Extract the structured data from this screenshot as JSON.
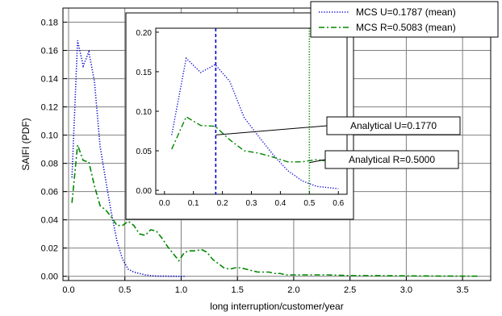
{
  "chart_data": [
    {
      "type": "line",
      "xlabel": "long interruption/customer/year",
      "ylabel": "SAIFI (PDF)",
      "xlim": [
        -0.05,
        3.75
      ],
      "ylim": [
        -0.003,
        0.19
      ],
      "xticks": [
        0.0,
        0.5,
        1.0,
        1.5,
        2.0,
        2.5,
        3.0,
        3.5
      ],
      "xtick_labels": [
        "0.0",
        "0.5",
        "1.0",
        "1.5",
        "2.0",
        "2.5",
        "3.0",
        "3.5"
      ],
      "yticks": [
        0.0,
        0.02,
        0.04,
        0.06,
        0.08,
        0.1,
        0.12,
        0.14,
        0.16,
        0.18
      ],
      "ytick_labels": [
        "0.00",
        "0.02",
        "0.04",
        "0.06",
        "0.08",
        "0.10",
        "0.12",
        "0.14",
        "0.16",
        "0.18"
      ],
      "grid": true,
      "legend_position": "top-right",
      "series": [
        {
          "name": "MCS U=0.1787 (mean)",
          "color": "#0000cc",
          "style": "dotted",
          "x": [
            0.03,
            0.08,
            0.13,
            0.18,
            0.23,
            0.28,
            0.33,
            0.38,
            0.43,
            0.48,
            0.53,
            0.58,
            0.63,
            0.68,
            0.73,
            0.78,
            0.85,
            0.95,
            1.03
          ],
          "y": [
            0.07,
            0.167,
            0.149,
            0.159,
            0.138,
            0.092,
            0.068,
            0.045,
            0.025,
            0.012,
            0.005,
            0.003,
            0.002,
            0.001,
            0.0005,
            0.0002,
            0.0001,
            0.0,
            0.0
          ]
        },
        {
          "name": "MCS R=0.5083 (mean)",
          "color": "#008800",
          "style": "dashdot",
          "x": [
            0.03,
            0.08,
            0.13,
            0.18,
            0.23,
            0.28,
            0.33,
            0.38,
            0.43,
            0.48,
            0.53,
            0.58,
            0.63,
            0.68,
            0.73,
            0.78,
            0.83,
            0.88,
            0.93,
            0.98,
            1.03,
            1.08,
            1.13,
            1.18,
            1.23,
            1.28,
            1.33,
            1.38,
            1.43,
            1.48,
            1.53,
            1.58,
            1.63,
            1.68,
            1.73,
            1.78,
            1.83,
            1.88,
            1.93,
            1.98,
            2.1,
            2.3,
            2.5,
            2.7,
            3.0,
            3.3,
            3.65
          ],
          "y": [
            0.052,
            0.093,
            0.082,
            0.081,
            0.064,
            0.05,
            0.047,
            0.042,
            0.036,
            0.036,
            0.039,
            0.036,
            0.03,
            0.029,
            0.033,
            0.032,
            0.027,
            0.021,
            0.016,
            0.011,
            0.017,
            0.018,
            0.018,
            0.019,
            0.017,
            0.012,
            0.009,
            0.006,
            0.005,
            0.006,
            0.006,
            0.005,
            0.004,
            0.003,
            0.003,
            0.003,
            0.002,
            0.002,
            0.001,
            0.001,
            0.001,
            0.001,
            0.0005,
            0.0005,
            0.0003,
            0.0002,
            0.0001
          ]
        }
      ]
    },
    {
      "type": "line",
      "role": "inset",
      "xlim": [
        -0.03,
        0.63
      ],
      "ylim": [
        -0.005,
        0.205
      ],
      "xticks": [
        0.0,
        0.1,
        0.2,
        0.3,
        0.4,
        0.5,
        0.6
      ],
      "xtick_labels": [
        "0.0",
        "0.1",
        "0.2",
        "0.3",
        "0.4",
        "0.5",
        "0.6"
      ],
      "yticks": [
        0.0,
        0.05,
        0.1,
        0.15,
        0.2
      ],
      "ytick_labels": [
        "0.00",
        "0.05",
        "0.10",
        "0.15",
        "0.20"
      ],
      "grid": false,
      "series": [
        {
          "name": "MCS U=0.1787 (mean)",
          "color": "#0000cc",
          "style": "dotted",
          "x": [
            0.025,
            0.075,
            0.125,
            0.175,
            0.225,
            0.275,
            0.325,
            0.375,
            0.425,
            0.475,
            0.525,
            0.575,
            0.6
          ],
          "y": [
            0.07,
            0.167,
            0.149,
            0.159,
            0.138,
            0.092,
            0.068,
            0.045,
            0.025,
            0.012,
            0.005,
            0.003,
            0.002
          ]
        },
        {
          "name": "MCS R=0.5083 (mean)",
          "color": "#008800",
          "style": "dashdot",
          "x": [
            0.025,
            0.075,
            0.125,
            0.175,
            0.225,
            0.275,
            0.325,
            0.375,
            0.425,
            0.475,
            0.525,
            0.575,
            0.6
          ],
          "y": [
            0.052,
            0.093,
            0.082,
            0.081,
            0.064,
            0.05,
            0.047,
            0.042,
            0.036,
            0.036,
            0.039,
            0.036,
            0.032
          ]
        }
      ],
      "vlines": [
        {
          "x": 0.177,
          "color": "#0000cc",
          "style": "dashed"
        },
        {
          "x": 0.5,
          "color": "#008800",
          "style": "dotted"
        }
      ]
    }
  ],
  "annotations": [
    {
      "text": "Analytical U=0.1770",
      "target_x": 0.177,
      "target_y": 0.07
    },
    {
      "text": "Analytical R=0.5000",
      "target_x": 0.5,
      "target_y": 0.035
    }
  ]
}
